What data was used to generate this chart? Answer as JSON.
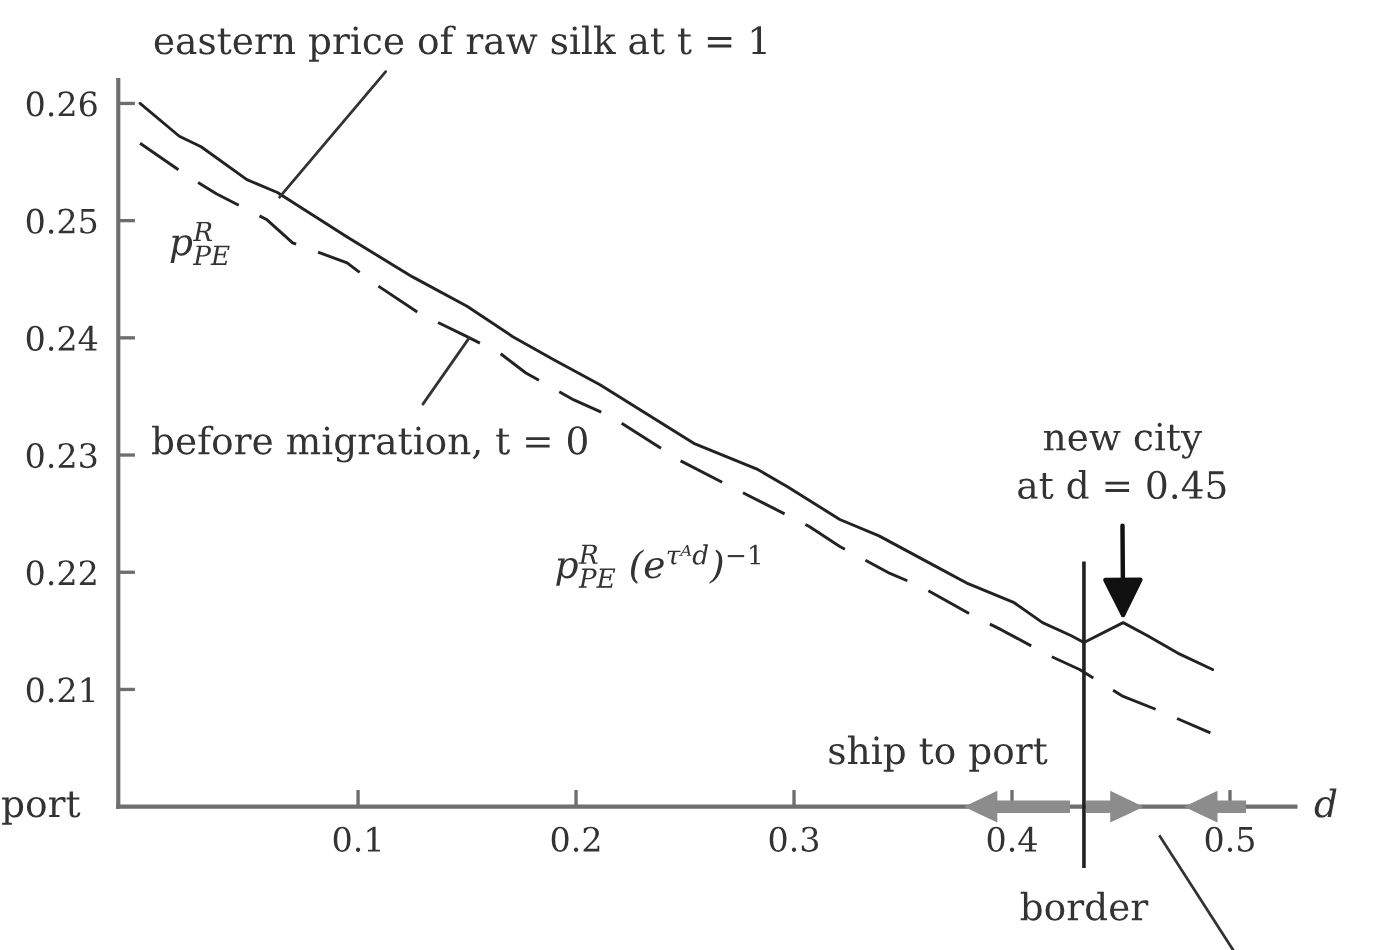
{
  "chart_data": {
    "type": "line",
    "xlabel": "d",
    "xlim": [
      -0.01,
      0.53
    ],
    "xticks": [
      0.1,
      0.2,
      0.3,
      0.4,
      0.5
    ],
    "ylim": [
      0.2,
      0.262
    ],
    "yticks": [
      0.21,
      0.22,
      0.23,
      0.24,
      0.25,
      0.26
    ],
    "series": [
      {
        "color": "#222222",
        "line_style": "solid",
        "x": [
          0,
          0.018,
          0.028,
          0.049,
          0.063,
          0.095,
          0.125,
          0.15,
          0.171,
          0.19,
          0.211,
          0.229,
          0.254,
          0.283,
          0.297,
          0.321,
          0.339,
          0.365,
          0.379,
          0.401,
          0.414,
          0.427,
          0.433,
          0.451,
          0.462,
          0.476,
          0.492
        ],
        "values": [
          0.26,
          0.2572,
          0.2563,
          0.2535,
          0.2524,
          0.2486,
          0.2452,
          0.2427,
          0.2401,
          0.2381,
          0.236,
          0.2339,
          0.231,
          0.2288,
          0.2273,
          0.2245,
          0.2231,
          0.2205,
          0.2191,
          0.2174,
          0.2157,
          0.2146,
          0.214,
          0.2157,
          0.2146,
          0.2131,
          0.2117
        ]
      },
      {
        "color": "#222222",
        "line_style": "dashed",
        "x": [
          0,
          0.021,
          0.035,
          0.058,
          0.07,
          0.095,
          0.107,
          0.128,
          0.15,
          0.165,
          0.177,
          0.199,
          0.216,
          0.248,
          0.271,
          0.286,
          0.307,
          0.321,
          0.344,
          0.358,
          0.381,
          0.395,
          0.417,
          0.431,
          0.451,
          0.466,
          0.491
        ],
        "values": [
          0.2566,
          0.2539,
          0.2523,
          0.2501,
          0.2481,
          0.2464,
          0.2447,
          0.2421,
          0.2401,
          0.2387,
          0.237,
          0.2347,
          0.2333,
          0.2295,
          0.2273,
          0.2259,
          0.2239,
          0.2222,
          0.2199,
          0.2188,
          0.2164,
          0.2151,
          0.2129,
          0.2117,
          0.2094,
          0.2083,
          0.2063
        ]
      }
    ],
    "ref_lines": [
      {
        "axis": "x",
        "value": 0.433,
        "label": "border",
        "color": "#222222"
      }
    ],
    "annotations": [
      {
        "text": "eastern price of raw silk at t = 1",
        "x": 0.064,
        "y": 0.252
      },
      {
        "text": "before migration, t = 0",
        "x": 0.151,
        "y": 0.24
      },
      {
        "text": "new city\nat d = 0.45",
        "x": 0.451,
        "y": 0.2157
      },
      "p$^{R}$$_{PE}$",
      "p$^{R}$$_{PE}$ (e$^{τᴬd}$)$^{−1}$",
      "ship to port",
      "port"
    ]
  }
}
